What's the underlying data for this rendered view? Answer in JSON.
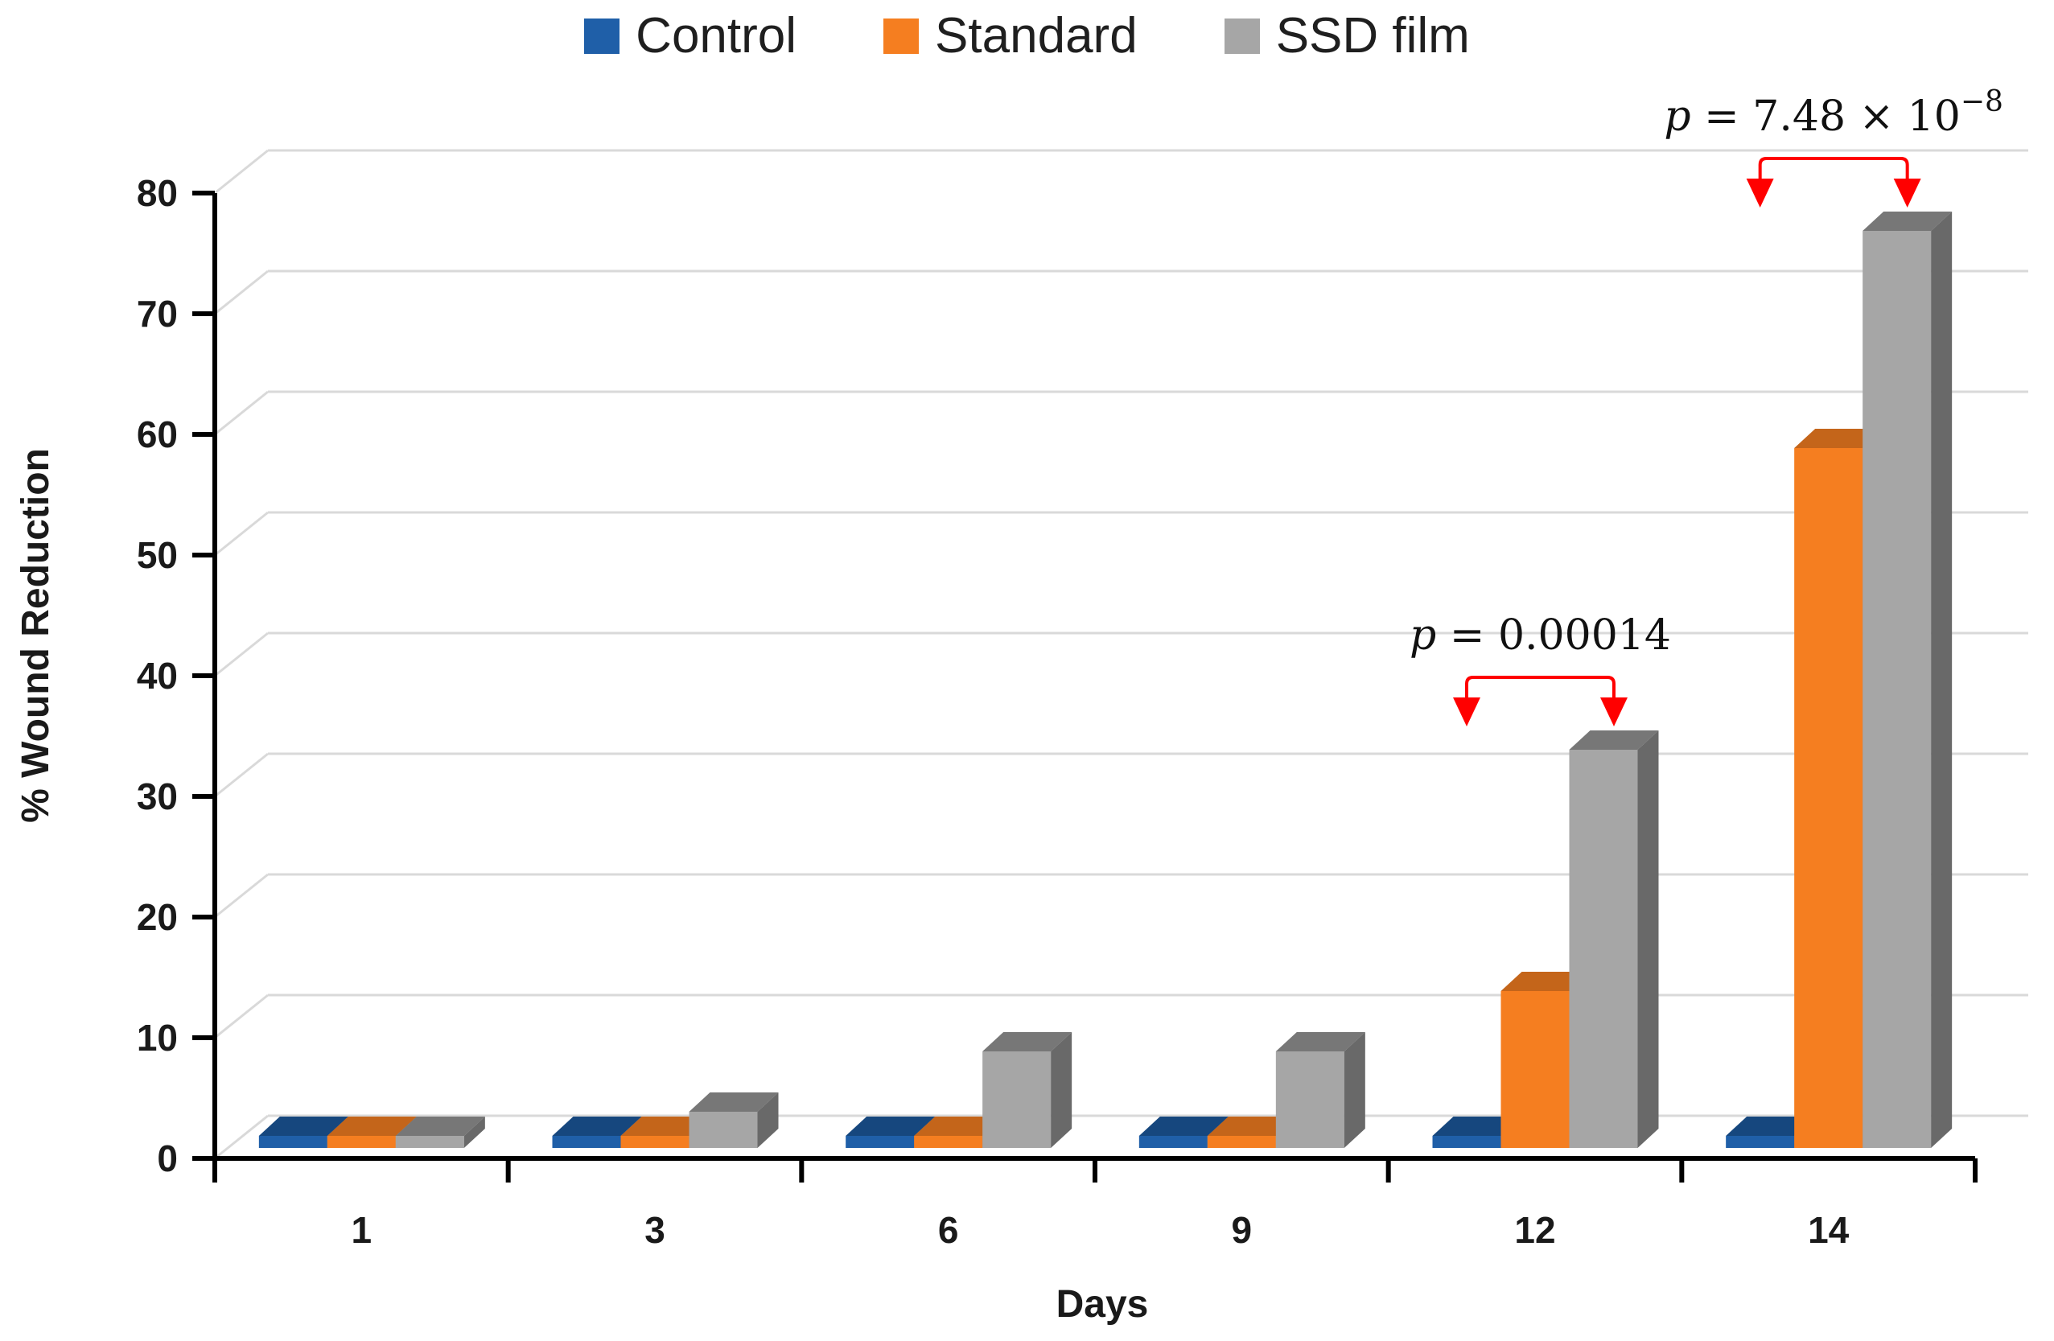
{
  "page": {
    "background": "#FFFFFF"
  },
  "legend": {
    "items": [
      "Control",
      "Standard",
      "SSD film"
    ]
  },
  "chart_data": {
    "type": "bar",
    "style": "3d-clustered",
    "title": "",
    "xlabel": "Days",
    "ylabel": "% Wound Reduction",
    "categories": [
      "1",
      "3",
      "6",
      "9",
      "12",
      "14"
    ],
    "series": [
      {
        "name": "Control",
        "color": "#1F5FA8",
        "color_top": "#16477E",
        "color_side": "#123A69",
        "values": [
          1,
          1,
          1,
          1,
          1,
          1
        ]
      },
      {
        "name": "Standard",
        "color": "#F57E20",
        "color_top": "#C4651A",
        "color_side": "#9E520F",
        "values": [
          1,
          1,
          1,
          1,
          13,
          58
        ]
      },
      {
        "name": "SSD film",
        "color": "#A6A6A6",
        "color_top": "#777777",
        "color_side": "#696969",
        "values": [
          1,
          3,
          8,
          8,
          33,
          76
        ]
      }
    ],
    "ylim": [
      0,
      80
    ],
    "ytick_step": 10,
    "ytick_labels": [
      "0",
      "10",
      "20",
      "30",
      "40",
      "50",
      "60",
      "70",
      "80"
    ],
    "grid": true,
    "legend_position": "top",
    "annotations": [
      {
        "text": "p = 0.00014",
        "sup": "",
        "category": "12",
        "from_series": "Control",
        "to_series": "SSD film",
        "color": "#FF0000"
      },
      {
        "text": "p = 7.48 × 10",
        "sup": "−8",
        "category": "14",
        "from_series": "Control",
        "to_series": "SSD film",
        "color": "#FF0000"
      }
    ],
    "colors": {
      "gridline": "#D9D9D9",
      "axis": "#000000",
      "text": "#1A1A1A"
    }
  }
}
